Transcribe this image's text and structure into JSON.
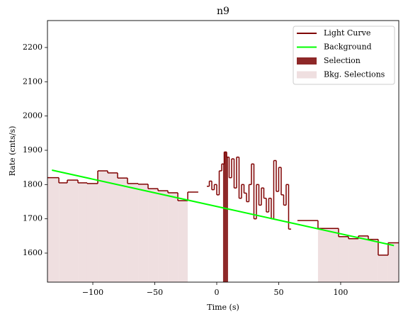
{
  "chart_data": {
    "type": "step",
    "title": "n9",
    "xlabel": "Time (s)",
    "ylabel": "Rate (cnts/s)",
    "xlim": [
      -136.6,
      146.9
    ],
    "ylim": [
      1515.2,
      2278.6
    ],
    "xticks": [
      {
        "value": -100,
        "label": "−100"
      },
      {
        "value": -50,
        "label": "−50"
      },
      0,
      50,
      100
    ],
    "yticks": [
      1600,
      1700,
      1800,
      1900,
      2000,
      2100,
      2200
    ],
    "legend": "upper right",
    "light_curve": {
      "name": "Light Curve",
      "color": "#7f0000",
      "bins": [
        -139.3,
        -127.4,
        -120.6,
        -112.0,
        -104.6,
        -96.0,
        -88.0,
        -80.0,
        -72.0,
        -63.4,
        -55.4,
        -47.4,
        -39.4,
        -31.4,
        -23.4,
        -14.9,
        -8,
        -6,
        -4,
        -2,
        0,
        2,
        4,
        6,
        8,
        10,
        12,
        14,
        16,
        18,
        20,
        22,
        24,
        26,
        28,
        30,
        32,
        34,
        36,
        38,
        40,
        42,
        44,
        46,
        48,
        50,
        52,
        54,
        56,
        58,
        60,
        65.1,
        81.7,
        98.3,
        106.3,
        114.3,
        122.3,
        130.3,
        138.3,
        146.9
      ],
      "values": [
        1820,
        1805,
        1813,
        1805,
        1803,
        1840,
        1834,
        1819,
        1803,
        1801,
        1788,
        1782,
        1776,
        1753,
        1778,
        null,
        1795,
        1810,
        1785,
        1800,
        1770,
        1840,
        1860,
        1895,
        1880,
        1820,
        1875,
        1790,
        1880,
        1760,
        1800,
        1775,
        1750,
        1800,
        1860,
        1700,
        1800,
        1740,
        1790,
        1760,
        1720,
        1760,
        1700,
        1870,
        1780,
        1850,
        1770,
        1740,
        1800,
        1670,
        null,
        1695,
        1672,
        1648,
        1642,
        1650,
        1640,
        1594,
        1630
      ]
    },
    "background": {
      "name": "Background",
      "color": "#00ff00",
      "x": [
        -133,
        143
      ],
      "values": [
        1842,
        1622
      ]
    },
    "selection": {
      "name": "Selection",
      "color": "#8e2828",
      "range": [
        5.1,
        9.1
      ]
    },
    "bkg_selections": {
      "name": "Bkg. Selections",
      "color": "#efdfe0",
      "ranges": [
        [
          -139.3,
          -23.4
        ],
        [
          81.7,
          146.9
        ]
      ]
    }
  }
}
